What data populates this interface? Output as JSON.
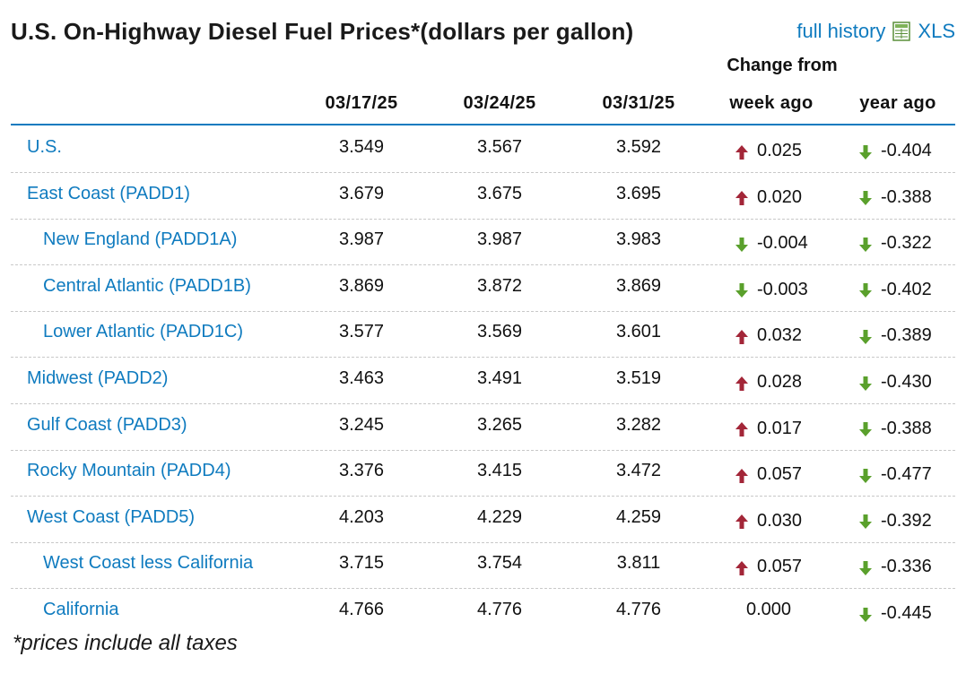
{
  "header": {
    "title": "U.S. On-Highway Diesel Fuel Prices*(dollars per gallon)",
    "full_history_link": "full history",
    "xls_link": "XLS"
  },
  "table": {
    "change_from_label": "Change from",
    "columns": [
      "03/17/25",
      "03/24/25",
      "03/31/25",
      "week ago",
      "year ago"
    ],
    "rows": [
      {
        "name": "U.S.",
        "indent": false,
        "values": [
          "3.549",
          "3.567",
          "3.592"
        ],
        "week_change": "0.025",
        "week_dir": "up",
        "year_change": "-0.404",
        "year_dir": "down"
      },
      {
        "name": "East Coast (PADD1)",
        "indent": false,
        "values": [
          "3.679",
          "3.675",
          "3.695"
        ],
        "week_change": "0.020",
        "week_dir": "up",
        "year_change": "-0.388",
        "year_dir": "down"
      },
      {
        "name": "New England (PADD1A)",
        "indent": true,
        "values": [
          "3.987",
          "3.987",
          "3.983"
        ],
        "week_change": "-0.004",
        "week_dir": "down",
        "year_change": "-0.322",
        "year_dir": "down"
      },
      {
        "name": "Central Atlantic (PADD1B)",
        "indent": true,
        "values": [
          "3.869",
          "3.872",
          "3.869"
        ],
        "week_change": "-0.003",
        "week_dir": "down",
        "year_change": "-0.402",
        "year_dir": "down"
      },
      {
        "name": "Lower Atlantic (PADD1C)",
        "indent": true,
        "values": [
          "3.577",
          "3.569",
          "3.601"
        ],
        "week_change": "0.032",
        "week_dir": "up",
        "year_change": "-0.389",
        "year_dir": "down"
      },
      {
        "name": "Midwest (PADD2)",
        "indent": false,
        "values": [
          "3.463",
          "3.491",
          "3.519"
        ],
        "week_change": "0.028",
        "week_dir": "up",
        "year_change": "-0.430",
        "year_dir": "down"
      },
      {
        "name": "Gulf Coast (PADD3)",
        "indent": false,
        "values": [
          "3.245",
          "3.265",
          "3.282"
        ],
        "week_change": "0.017",
        "week_dir": "up",
        "year_change": "-0.388",
        "year_dir": "down"
      },
      {
        "name": "Rocky Mountain (PADD4)",
        "indent": false,
        "values": [
          "3.376",
          "3.415",
          "3.472"
        ],
        "week_change": "0.057",
        "week_dir": "up",
        "year_change": "-0.477",
        "year_dir": "down"
      },
      {
        "name": "West Coast (PADD5)",
        "indent": false,
        "values": [
          "4.203",
          "4.229",
          "4.259"
        ],
        "week_change": "0.030",
        "week_dir": "up",
        "year_change": "-0.392",
        "year_dir": "down"
      },
      {
        "name": "West Coast less California",
        "indent": true,
        "values": [
          "3.715",
          "3.754",
          "3.811"
        ],
        "week_change": "0.057",
        "week_dir": "up",
        "year_change": "-0.336",
        "year_dir": "down"
      },
      {
        "name": "California",
        "indent": true,
        "values": [
          "4.766",
          "4.776",
          "4.776"
        ],
        "week_change": "0.000",
        "week_dir": "none",
        "year_change": "-0.445",
        "year_dir": "down"
      }
    ]
  },
  "footnote": "*prices include all taxes",
  "colors": {
    "link": "#0f7bbf",
    "up_arrow": "#a32638",
    "down_arrow": "#5aa02c"
  },
  "icons": {
    "xls": "spreadsheet-icon",
    "up": "arrow-up-icon",
    "down": "arrow-down-icon"
  }
}
